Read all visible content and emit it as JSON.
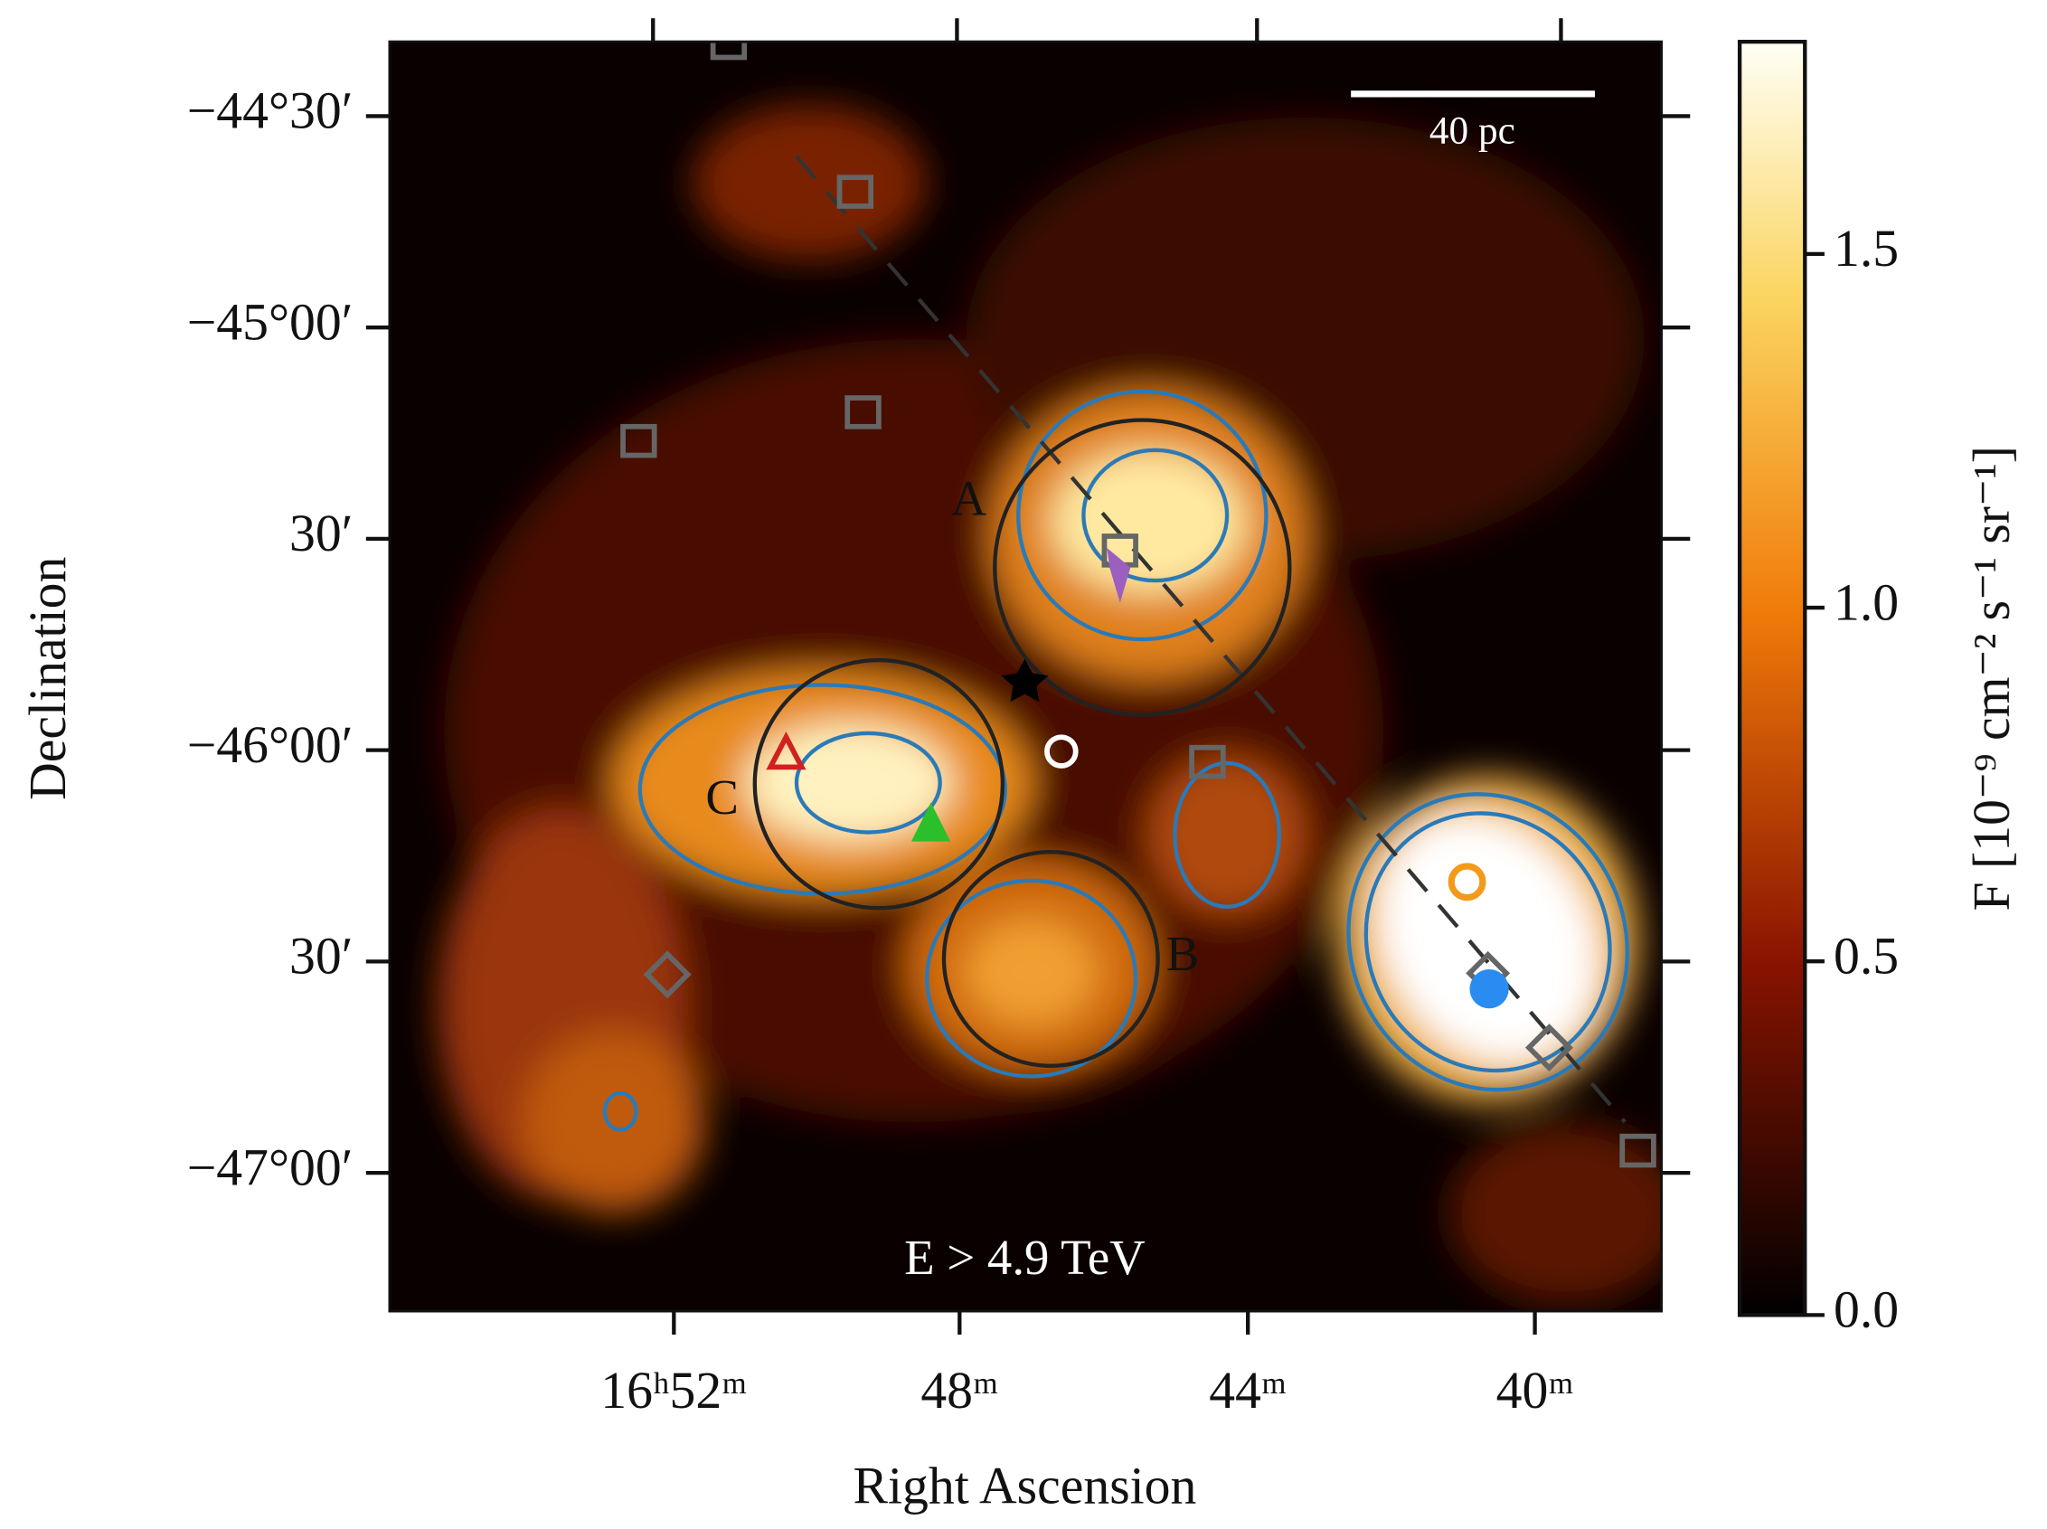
{
  "chart_data": {
    "type": "heatmap",
    "x_label": "Right Ascension",
    "y_label": "Declination",
    "x_tick_labels": [
      "16ʰ52ᵐ",
      "48ᵐ",
      "44ᵐ",
      "40ᵐ"
    ],
    "y_tick_labels": [
      "−44°30′",
      "−45°00′",
      "30′",
      "−46°00′",
      "30′",
      "−47°00′"
    ],
    "annotation": "E > 4.9 TeV",
    "scale_bar": "40 pc",
    "region_labels": [
      "A",
      "B",
      "C"
    ],
    "colorbar": {
      "label": "F [10⁻⁹ cm⁻² s⁻¹ sr⁻¹]",
      "lim": [
        0,
        1.8
      ],
      "ticks": [
        {
          "value": 0,
          "label": "0.0"
        },
        0.5,
        {
          "value": 1,
          "label": "1.0"
        },
        1.5
      ]
    }
  }
}
